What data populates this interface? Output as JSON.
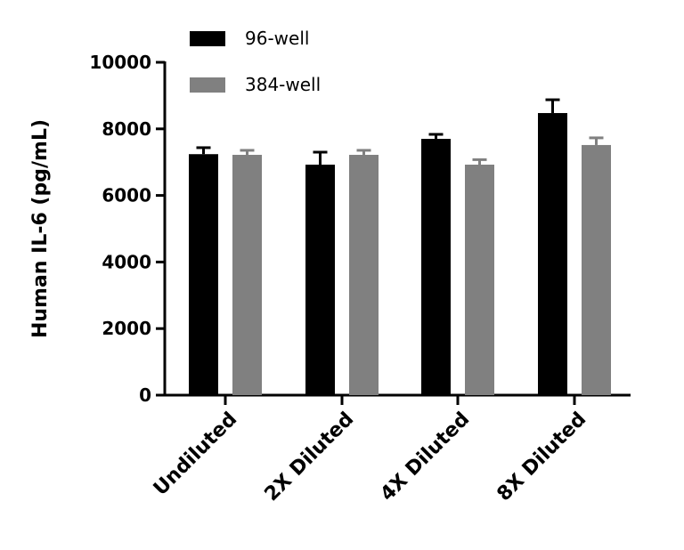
{
  "chart_data": {
    "type": "bar",
    "title": "",
    "xlabel": "",
    "ylabel": "Human IL-6 (pg/mL)",
    "ylim": [
      0,
      10000
    ],
    "yticks": [
      0,
      2000,
      4000,
      6000,
      8000,
      10000
    ],
    "categories": [
      "Undiluted",
      "2X Diluted",
      "4X Diluted",
      "8X Diluted"
    ],
    "legend_position": "top-left",
    "grid": false,
    "series": [
      {
        "name": "96-well",
        "color": "#000000",
        "values": [
          7240,
          6925,
          7700,
          8475
        ],
        "errors": [
          195,
          375,
          135,
          400
        ]
      },
      {
        "name": "384-well",
        "color": "#808080",
        "values": [
          7220,
          7220,
          6925,
          7515
        ],
        "errors": [
          135,
          135,
          150,
          215
        ]
      }
    ]
  }
}
